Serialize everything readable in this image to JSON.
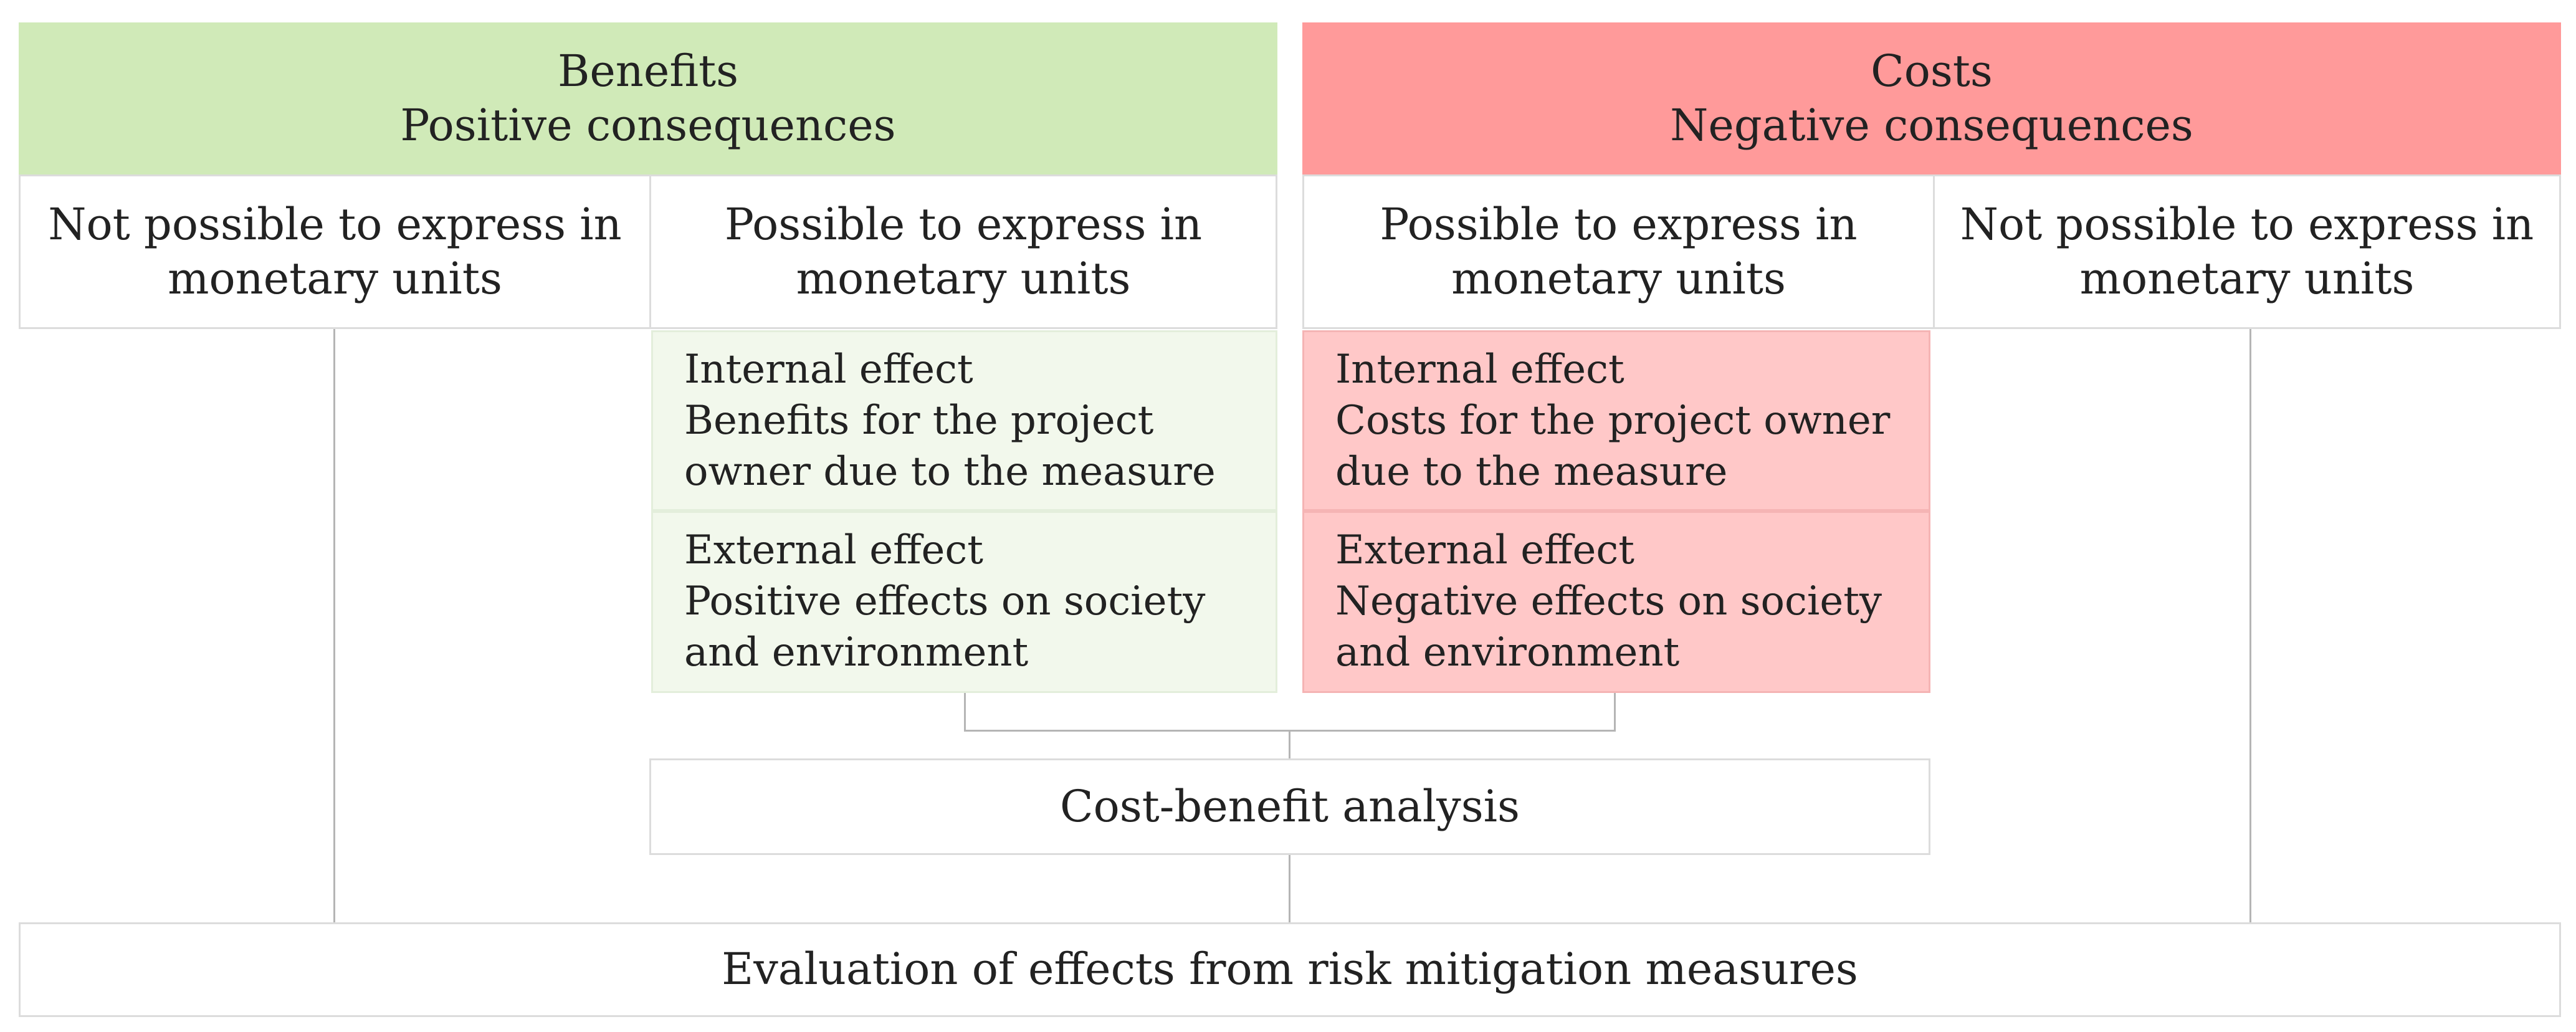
{
  "benefits": {
    "title": "Benefits",
    "subtitle": "Positive consequences",
    "color": "#d0eab8",
    "not_monetary": "Not possible to express in\nmonetary units",
    "monetary": "Possible to express in\nmonetary units",
    "effect_color": "#f2f8ec",
    "internal": "Internal effect\nBenefits for the project\nowner due to the measure",
    "external": "External effect\nPositive effects on society\nand environment"
  },
  "costs": {
    "title": "Costs",
    "subtitle": "Negative consequences",
    "color": "#ff9a9a",
    "monetary": "Possible to express in\nmonetary units",
    "not_monetary": "Not possible to express in\nmonetary units",
    "effect_color": "#ffc8c8",
    "internal": "Internal effect\nCosts for the project owner\ndue to the measure",
    "external": "External effect\nNegative effects on society\nand environment"
  },
  "cba": "Cost-benefit analysis",
  "evaluation": "Evaluation of effects from risk mitigation measures"
}
